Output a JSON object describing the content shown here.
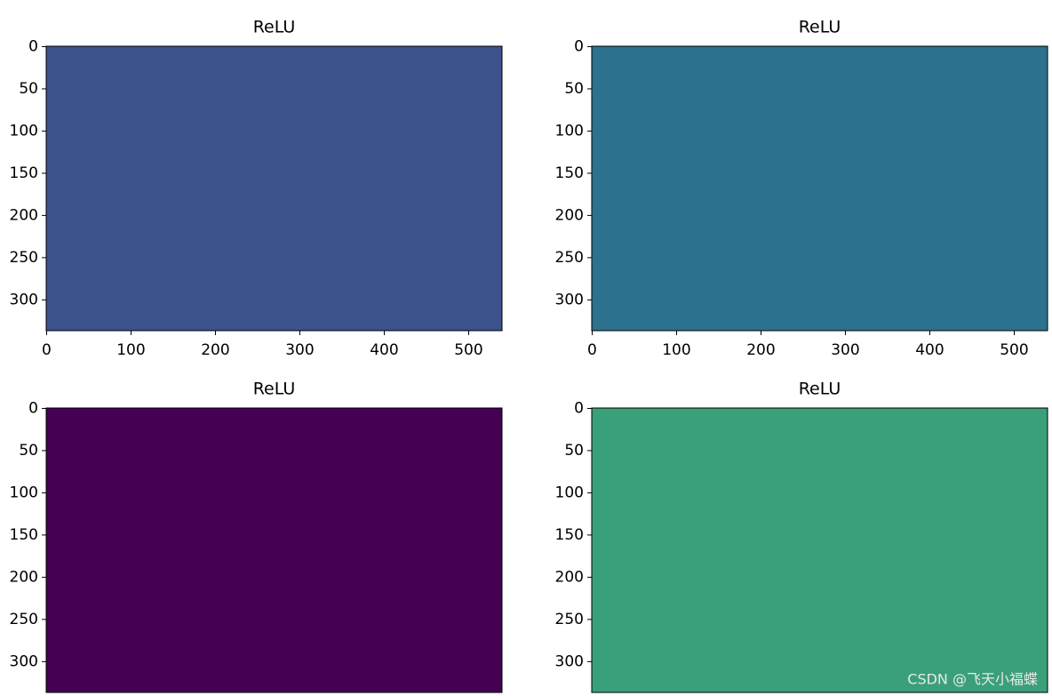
{
  "chart_data": [
    {
      "type": "image",
      "title": "ReLU",
      "color": "#3b528b",
      "xlim": [
        -0.5,
        539.5
      ],
      "ylim": [
        336.5,
        -0.5
      ],
      "xticks": [
        0,
        100,
        200,
        300,
        400,
        500
      ],
      "yticks": [
        0,
        50,
        100,
        150,
        200,
        250,
        300
      ]
    },
    {
      "type": "image",
      "title": "ReLU",
      "color": "#2c728e",
      "xlim": [
        -0.5,
        539.5
      ],
      "ylim": [
        336.5,
        -0.5
      ],
      "xticks": [
        0,
        100,
        200,
        300,
        400,
        500
      ],
      "yticks": [
        0,
        50,
        100,
        150,
        200,
        250,
        300
      ]
    },
    {
      "type": "image",
      "title": "ReLU",
      "color": "#440154",
      "xlim": [
        -0.5,
        539.5
      ],
      "ylim": [
        336.5,
        -0.5
      ],
      "yticks": [
        0,
        50,
        100,
        150,
        200,
        250,
        300
      ]
    },
    {
      "type": "image",
      "title": "ReLU",
      "color": "#3aa07a",
      "xlim": [
        -0.5,
        539.5
      ],
      "ylim": [
        336.5,
        -0.5
      ],
      "yticks": [
        0,
        50,
        100,
        150,
        200,
        250,
        300
      ]
    }
  ],
  "watermark": "CSDN @飞天小福蝶"
}
